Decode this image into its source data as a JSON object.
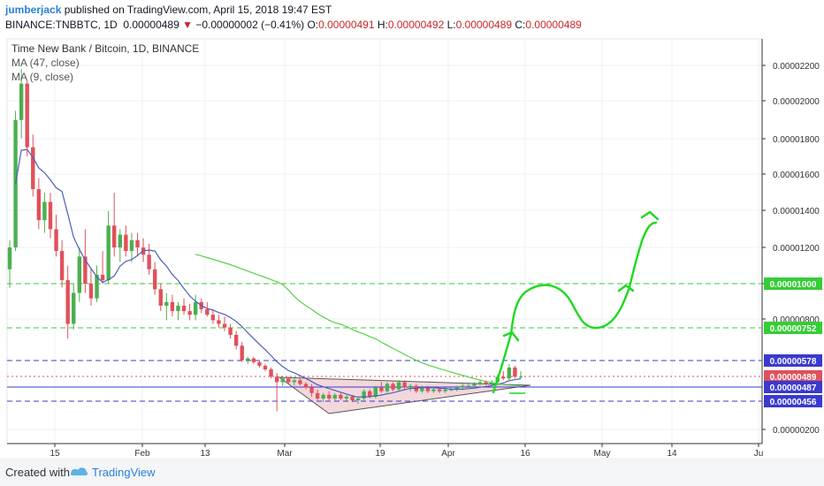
{
  "header": {
    "author": "jumberjack",
    "published": " published on TradingView.com, April 15, 2018 19:47 EST",
    "symbol": "BINANCE:TNBBTC, 1D",
    "last": "0.00000489",
    "change_arrow": "▼",
    "change": "−0.00000002 (−0.41%)",
    "o_label": "O:",
    "o": "0.00000491",
    "h_label": "H:",
    "h": "0.00000492",
    "l_label": "L:",
    "l": "0.00000489",
    "c_label": "C:",
    "c": "0.00000489"
  },
  "legend": {
    "title": "Time New Bank / Bitcoin, 1D, BINANCE",
    "ma47": "MA (47, close)",
    "ma9": "MA (9, close)"
  },
  "footer": {
    "created_with": "Created with",
    "brand": "TradingView"
  },
  "colors": {
    "up": "#4caf50",
    "down": "#e0515b",
    "ma47": "#58d04a",
    "ma9": "#4d5fb8",
    "green_level": "#35cd35",
    "blue_level": "#3a3acf",
    "purple_level": "#7a2a8a",
    "drawing": "#1ed91e",
    "triangle_fill": "#e8b7bf"
  },
  "chart_data": {
    "type": "candlestick",
    "price_axis": {
      "range": [
        1.8e-06,
        2.4e-06
      ],
      "ticks": [
        "0.00002200",
        "0.00002000",
        "0.00001800",
        "0.00001600",
        "0.00001400",
        "0.00001200",
        "0.00001000",
        "0.00000800",
        "0.00000200"
      ]
    },
    "time_axis": {
      "ticks": [
        "15",
        "Feb",
        "13",
        "Mar",
        "19",
        "Apr",
        "16",
        "May",
        "14",
        "Ju"
      ]
    },
    "price_labels": [
      {
        "text": "0.00001000",
        "value": 1e-05,
        "color": "#35cd35",
        "style": "dashed"
      },
      {
        "text": "0.00000752",
        "value": 7.52e-06,
        "color": "#35cd35",
        "style": "dashed"
      },
      {
        "text": "0.00000578",
        "value": 5.78e-06,
        "color": "#3a3acf",
        "style": "dashed"
      },
      {
        "text": "0.00000489",
        "value": 4.89e-06,
        "color": "#e0515b",
        "style": "dotted"
      },
      {
        "text": "0.00000487",
        "value": 4.87e-06,
        "color": "#3a3acf",
        "style": "solid"
      },
      {
        "text": "0.00000456",
        "value": 4.56e-06,
        "color": "#3a3acf",
        "style": "dashed"
      }
    ],
    "candles": [
      [
        1.08e-05,
        1.24e-05,
        9.8e-06,
        1.2e-05
      ],
      [
        1.2e-05,
        1.95e-05,
        1.18e-05,
        1.9e-05
      ],
      [
        1.9e-05,
        2.18e-05,
        1.8e-05,
        2.1e-05
      ],
      [
        2.1e-05,
        2.12e-05,
        1.7e-05,
        1.75e-05
      ],
      [
        1.75e-05,
        1.82e-05,
        1.48e-05,
        1.52e-05
      ],
      [
        1.52e-05,
        1.58e-05,
        1.3e-05,
        1.35e-05
      ],
      [
        1.35e-05,
        1.5e-05,
        1.28e-05,
        1.45e-05
      ],
      [
        1.45e-05,
        1.5e-05,
        1.25e-05,
        1.3e-05
      ],
      [
        1.3e-05,
        1.38e-05,
        1.15e-05,
        1.18e-05
      ],
      [
        1.18e-05,
        1.24e-05,
        9.8e-06,
        1.02e-05
      ],
      [
        1.02e-05,
        1.1e-05,
        7e-06,
        7.8e-06
      ],
      [
        7.8e-06,
        1e-05,
        7.5e-06,
        9.5e-06
      ],
      [
        9.5e-06,
        1.2e-05,
        9e-06,
        1.15e-05
      ],
      [
        1.15e-05,
        1.3e-05,
        9.5e-06,
        1e-05
      ],
      [
        1e-05,
        1.08e-05,
        8.8e-06,
        9.2e-06
      ],
      [
        9.2e-06,
        1.1e-05,
        9e-06,
        1.05e-05
      ],
      [
        1.05e-05,
        1.18e-05,
        1e-05,
        1.02e-05
      ],
      [
        1.02e-05,
        1.4e-05,
        1e-05,
        1.32e-05
      ],
      [
        1.32e-05,
        1.5e-05,
        1.15e-05,
        1.2e-05
      ],
      [
        1.2e-05,
        1.3e-05,
        1.12e-05,
        1.27e-05
      ],
      [
        1.27e-05,
        1.32e-05,
        1.15e-05,
        1.18e-05
      ],
      [
        1.18e-05,
        1.28e-05,
        1.12e-05,
        1.24e-05
      ],
      [
        1.24e-05,
        1.28e-05,
        1.15e-05,
        1.2e-05
      ],
      [
        1.2e-05,
        1.25e-05,
        1.12e-05,
        1.16e-05
      ],
      [
        1.16e-05,
        1.22e-05,
        1.05e-05,
        1.08e-05
      ],
      [
        1.08e-05,
        1.12e-05,
        9.4e-06,
        9.7e-06
      ],
      [
        9.7e-06,
        1e-05,
        8.5e-06,
        8.8e-06
      ],
      [
        8.8e-06,
        9.5e-06,
        8e-06,
        9e-06
      ],
      [
        9e-06,
        9.4e-06,
        8.2e-06,
        8.5e-06
      ],
      [
        8.5e-06,
        9e-06,
        8e-06,
        8.8e-06
      ],
      [
        8.8e-06,
        9.2e-06,
        8.3e-06,
        8.5e-06
      ],
      [
        8.5e-06,
        8.9e-06,
        8e-06,
        8.3e-06
      ],
      [
        8.3e-06,
        9.4e-06,
        8e-06,
        9e-06
      ],
      [
        9e-06,
        9.2e-06,
        8.4e-06,
        8.6e-06
      ],
      [
        8.6e-06,
        9e-06,
        8.2e-06,
        8.3e-06
      ],
      [
        8.3e-06,
        8.6e-06,
        7.8e-06,
        8e-06
      ],
      [
        8e-06,
        8.3e-06,
        7.6e-06,
        7.8e-06
      ],
      [
        7.8e-06,
        8.2e-06,
        7.4e-06,
        7.6e-06
      ],
      [
        7.6e-06,
        7.8e-06,
        7e-06,
        7.2e-06
      ],
      [
        7.2e-06,
        7.4e-06,
        6.4e-06,
        6.6e-06
      ],
      [
        6.6e-06,
        6.8e-06,
        5.7e-06,
        5.8e-06
      ],
      [
        5.8e-06,
        6e-06,
        5.6e-06,
        5.9e-06
      ],
      [
        5.9e-06,
        6e-06,
        5.6e-06,
        5.7e-06
      ],
      [
        5.7e-06,
        5.8e-06,
        5.4e-06,
        5.5e-06
      ],
      [
        5.5e-06,
        5.6e-06,
        5.2e-06,
        5.3e-06
      ],
      [
        5.3e-06,
        5.4e-06,
        4.8e-06,
        4.9e-06
      ],
      [
        4.9e-06,
        5.1e-06,
        3e-06,
        4.6e-06
      ],
      [
        4.6e-06,
        4.9e-06,
        4.4e-06,
        4.8e-06
      ],
      [
        4.8e-06,
        4.9e-06,
        4.5e-06,
        4.6e-06
      ],
      [
        4.6e-06,
        4.8e-06,
        4.4e-06,
        4.7e-06
      ],
      [
        4.7e-06,
        4.8e-06,
        4.4e-06,
        4.5e-06
      ],
      [
        4.5e-06,
        4.6e-06,
        4.2e-06,
        4.3e-06
      ],
      [
        4.3e-06,
        4.5e-06,
        3.8e-06,
        4e-06
      ],
      [
        4e-06,
        4.2e-06,
        3.6e-06,
        3.7e-06
      ],
      [
        3.7e-06,
        4e-06,
        3.5e-06,
        3.9e-06
      ],
      [
        3.9e-06,
        4.1e-06,
        3.6e-06,
        3.7e-06
      ],
      [
        3.7e-06,
        4e-06,
        3.6e-06,
        3.9e-06
      ],
      [
        3.9e-06,
        4e-06,
        3.6e-06,
        3.7e-06
      ],
      [
        3.7e-06,
        3.9e-06,
        3.5e-06,
        3.8e-06
      ],
      [
        3.8e-06,
        3.9e-06,
        3.5e-06,
        3.6e-06
      ],
      [
        3.6e-06,
        3.8e-06,
        3.4e-06,
        3.7e-06
      ],
      [
        3.7e-06,
        4.2e-06,
        3.6e-06,
        4.1e-06
      ],
      [
        4.1e-06,
        4.2e-06,
        3.7e-06,
        3.8e-06
      ],
      [
        3.8e-06,
        4.4e-06,
        3.7e-06,
        4.3e-06
      ],
      [
        4.3e-06,
        4.6e-06,
        4e-06,
        4.1e-06
      ],
      [
        4.1e-06,
        4.6e-06,
        4e-06,
        4.5e-06
      ],
      [
        4.5e-06,
        4.6e-06,
        4.1e-06,
        4.2e-06
      ],
      [
        4.2e-06,
        4.7e-06,
        4.1e-06,
        4.6e-06
      ],
      [
        4.6e-06,
        4.7e-06,
        4.2e-06,
        4.3e-06
      ],
      [
        4.3e-06,
        4.5e-06,
        4.1e-06,
        4.4e-06
      ],
      [
        4.4e-06,
        4.5e-06,
        4e-06,
        4.1e-06
      ],
      [
        4.1e-06,
        4.4e-06,
        4e-06,
        4.3e-06
      ],
      [
        4.3e-06,
        4.4e-06,
        4e-06,
        4.1e-06
      ],
      [
        4.1e-06,
        4.3e-06,
        4e-06,
        4.2e-06
      ],
      [
        4.2e-06,
        4.3e-06,
        4e-06,
        4.1e-06
      ],
      [
        4.1e-06,
        4.3e-06,
        4e-06,
        4.2e-06
      ],
      [
        4.2e-06,
        4.3e-06,
        4.1e-06,
        4.2e-06
      ],
      [
        4.2e-06,
        4.4e-06,
        4.1e-06,
        4.3e-06
      ],
      [
        4.3e-06,
        4.5e-06,
        4.2e-06,
        4.4e-06
      ],
      [
        4.4e-06,
        4.6e-06,
        4.3e-06,
        4.4e-06
      ],
      [
        4.4e-06,
        4.6e-06,
        4.3e-06,
        4.5e-06
      ],
      [
        4.5e-06,
        4.7e-06,
        4.4e-06,
        4.6e-06
      ],
      [
        4.6e-06,
        4.7e-06,
        4.4e-06,
        4.5e-06
      ],
      [
        4.5e-06,
        4.7e-06,
        4.4e-06,
        4.6e-06
      ],
      [
        4.6e-06,
        5e-06,
        4.5e-06,
        4.9e-06
      ],
      [
        4.9e-06,
        5.2e-06,
        4.7e-06,
        4.8e-06
      ],
      [
        4.8e-06,
        5.6e-06,
        4.7e-06,
        5.4e-06
      ],
      [
        5.4e-06,
        5.5e-06,
        4.8e-06,
        4.9e-06
      ],
      [
        4.9e-06,
        5.2e-06,
        4.8e-06,
        4.9e-06
      ]
    ]
  }
}
